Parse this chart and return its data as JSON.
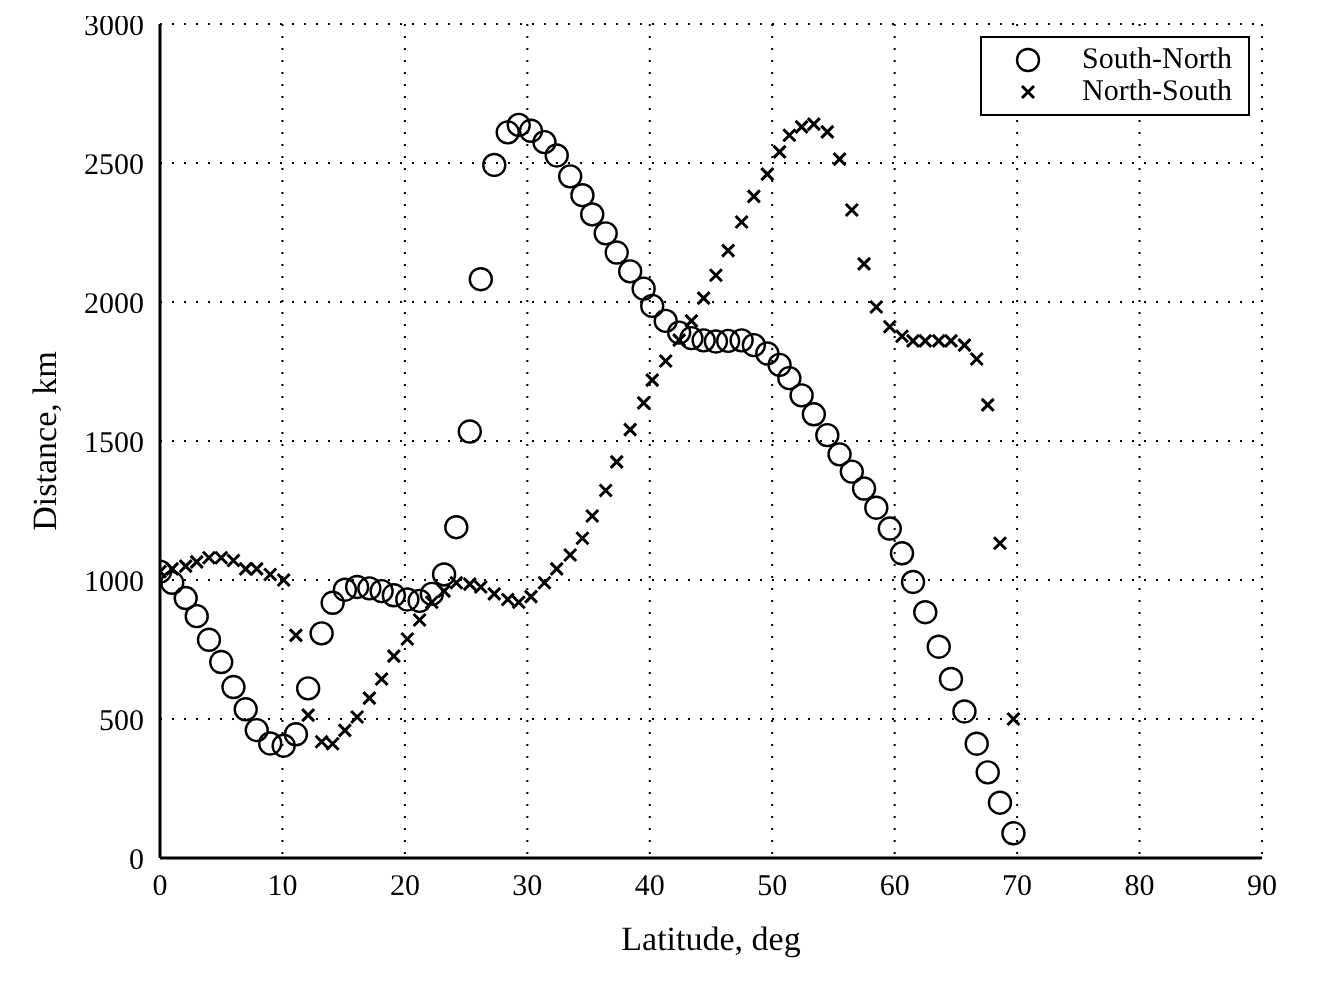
{
  "chart_data": {
    "type": "scatter",
    "xlabel": "Latitude, deg",
    "ylabel": "Distance, km",
    "x": [
      0,
      1.0,
      2.1,
      3.0,
      4.0,
      5.0,
      6.0,
      7.0,
      7.9,
      9.0,
      10.1,
      11.1,
      12.1,
      13.2,
      14.1,
      15.1,
      16.1,
      17.1,
      18.1,
      19.1,
      20.2,
      21.2,
      22.2,
      23.2,
      24.2,
      25.3,
      26.2,
      27.3,
      28.4,
      29.3,
      30.3,
      31.4,
      32.4,
      33.5,
      34.5,
      35.3,
      36.4,
      37.3,
      38.4,
      39.5,
      40.2,
      41.3,
      42.4,
      43.4,
      44.4,
      45.4,
      46.4,
      47.5,
      48.5,
      49.6,
      50.6,
      51.4,
      52.4,
      53.4,
      54.5,
      55.5,
      56.5,
      57.5,
      58.5,
      59.6,
      60.6,
      61.5,
      62.5,
      63.6,
      64.6,
      65.7,
      66.7,
      67.6,
      68.6,
      69.7
    ],
    "series": [
      {
        "name": "South-North",
        "color": "#000000",
        "marker": "circle",
        "values": [
          1030,
          990,
          935,
          870,
          785,
          705,
          615,
          535,
          460,
          412,
          404,
          445,
          610,
          808,
          918,
          965,
          975,
          970,
          960,
          945,
          930,
          925,
          950,
          1020,
          1190,
          1534,
          2082,
          2493,
          2610,
          2637,
          2616,
          2575,
          2527,
          2452,
          2384,
          2315,
          2247,
          2178,
          2110,
          2048,
          1986,
          1932,
          1890,
          1870,
          1862,
          1858,
          1860,
          1862,
          1845,
          1815,
          1774,
          1726,
          1664,
          1596,
          1521,
          1452,
          1390,
          1329,
          1260,
          1185,
          1096,
          993,
          884,
          760,
          644,
          527,
          411,
          308,
          199,
          89
        ]
      },
      {
        "name": "North-South",
        "color": "#000000",
        "marker": "cross",
        "values": [
          1030,
          1040,
          1050,
          1065,
          1080,
          1080,
          1070,
          1040,
          1040,
          1020,
          1000,
          801,
          514,
          418,
          411,
          459,
          507,
          575,
          644,
          726,
          788,
          856,
          920,
          960,
          990,
          985,
          975,
          950,
          930,
          920,
          940,
          990,
          1040,
          1090,
          1150,
          1230,
          1322,
          1425,
          1541,
          1637,
          1719,
          1788,
          1863,
          1932,
          2014,
          2096,
          2185,
          2288,
          2380,
          2460,
          2540,
          2600,
          2630,
          2640,
          2612,
          2514,
          2331,
          2137,
          1982,
          1911,
          1877,
          1860,
          1860,
          1860,
          1860,
          1845,
          1795,
          1630,
          1132,
          500
        ]
      }
    ],
    "xlim": [
      0,
      90
    ],
    "xticks": [
      0,
      10,
      20,
      30,
      40,
      50,
      60,
      70,
      80,
      90
    ],
    "ylim": [
      0,
      3000
    ],
    "yticks": [
      0,
      500,
      1000,
      1500,
      2000,
      2500,
      3000
    ],
    "grid": true,
    "legend": "top right"
  }
}
